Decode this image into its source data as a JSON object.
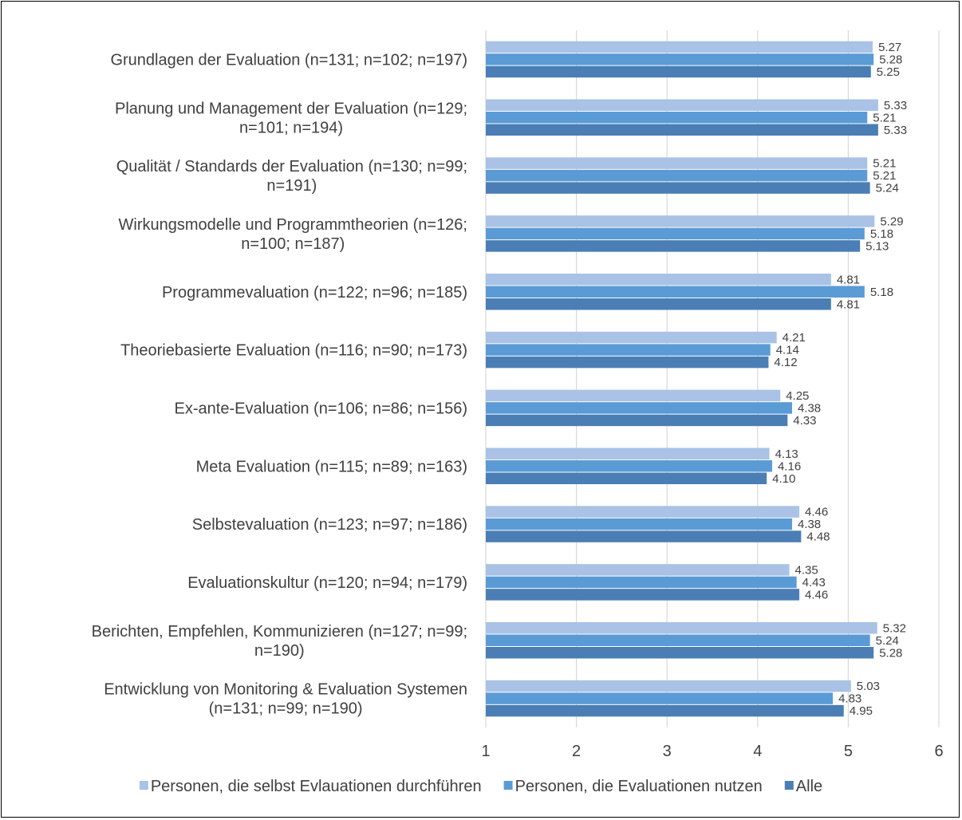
{
  "chart_data": {
    "type": "bar",
    "orientation": "horizontal",
    "categories": [
      [
        "Grundlagen der Evaluation (n=131; n=102; n=197)"
      ],
      [
        "Planung und Management der Evaluation (n=129;",
        "n=101; n=194)"
      ],
      [
        "Qualität / Standards der Evaluation (n=130; n=99;",
        "n=191)"
      ],
      [
        "Wirkungsmodelle und Programmtheorien (n=126;",
        "n=100; n=187)"
      ],
      [
        "Programmevaluation (n=122; n=96; n=185)"
      ],
      [
        "Theoriebasierte Evaluation (n=116; n=90; n=173)"
      ],
      [
        "Ex-ante-Evaluation (n=106; n=86; n=156)"
      ],
      [
        "Meta Evaluation (n=115; n=89; n=163)"
      ],
      [
        "Selbstevaluation (n=123; n=97; n=186)"
      ],
      [
        "Evaluationskultur (n=120; n=94; n=179)"
      ],
      [
        "Berichten, Empfehlen, Kommunizieren (n=127; n=99;",
        "n=190)"
      ],
      [
        "Entwicklung von Monitoring & Evaluation Systemen",
        "(n=131; n=99; n=190)"
      ]
    ],
    "series": [
      {
        "name": "Personen, die selbst Evlauationen durchführen",
        "color": "#a9c2e6",
        "values": [
          5.27,
          5.33,
          5.21,
          5.29,
          4.81,
          4.21,
          4.25,
          4.13,
          4.46,
          4.35,
          5.32,
          5.03
        ],
        "labels": [
          "5.27",
          "5.33",
          "5.21",
          "5.29",
          "4.81",
          "4.21",
          "4.25",
          "4.13",
          "4.46",
          "4.35",
          "5.32",
          "5.03"
        ]
      },
      {
        "name": "Personen, die Evaluationen nutzen",
        "color": "#5b9bd5",
        "values": [
          5.28,
          5.21,
          5.21,
          5.18,
          5.18,
          4.14,
          4.38,
          4.16,
          4.38,
          4.43,
          5.24,
          4.83
        ],
        "labels": [
          "5.28",
          "5.21",
          "5.21",
          "5.18",
          "5.18",
          "4.14",
          "4.38",
          "4.16",
          "4.38",
          "4.43",
          "5.24",
          "4.83"
        ]
      },
      {
        "name": "Alle",
        "color": "#4a7eb5",
        "values": [
          5.25,
          5.33,
          5.24,
          5.13,
          4.81,
          4.12,
          4.33,
          4.1,
          4.48,
          4.46,
          5.28,
          4.95
        ],
        "labels": [
          "5.25",
          "5.33",
          "5.24",
          "5.13",
          "4.81",
          "4.12",
          "4.33",
          "4.10",
          "4.48",
          "4.46",
          "5.28",
          "4.95"
        ]
      }
    ],
    "xlim": [
      1,
      6
    ],
    "xticks": [
      "1",
      "2",
      "3",
      "4",
      "5",
      "6"
    ],
    "grid": true,
    "legend_position": "bottom",
    "title": "",
    "xlabel": "",
    "ylabel": ""
  }
}
